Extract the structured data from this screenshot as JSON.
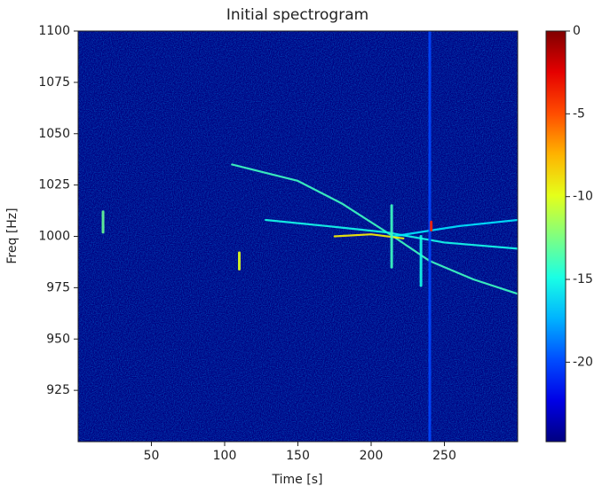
{
  "chart_data": {
    "type": "spectrogram",
    "title": "Initial spectrogram",
    "x_label": "Time [s]",
    "y_label": "Freq [Hz]",
    "xlim": [
      0,
      300
    ],
    "ylim": [
      900,
      1100
    ],
    "xticks": [
      50,
      100,
      150,
      200,
      250
    ],
    "yticks": [
      925,
      950,
      975,
      1000,
      1025,
      1050,
      1075,
      1100
    ],
    "clim": [
      -24.8,
      0
    ],
    "cticks": [
      0,
      -5,
      -10,
      -15,
      -20
    ],
    "colormap": "jet",
    "tracks": [
      {
        "x": [
          105,
          150,
          180,
          215,
          240,
          270,
          300
        ],
        "y": [
          1035,
          1027,
          1016,
          1000,
          988,
          979,
          972
        ],
        "level": -14
      },
      {
        "x": [
          128,
          170,
          210,
          250,
          300
        ],
        "y": [
          1008,
          1005,
          1002,
          997,
          994
        ],
        "level": -15
      },
      {
        "x": [
          215,
          260,
          300
        ],
        "y": [
          1000,
          1005,
          1008
        ],
        "level": -16
      },
      {
        "x": [
          175,
          200,
          222
        ],
        "y": [
          1000,
          1001,
          999
        ],
        "level": -9
      },
      {
        "x": [
          240,
          240
        ],
        "y": [
          900,
          1100
        ],
        "level": -20
      },
      {
        "x": [
          214,
          214
        ],
        "y": [
          985,
          1015
        ],
        "level": -14
      },
      {
        "x": [
          234,
          234
        ],
        "y": [
          976,
          1000
        ],
        "level": -15
      },
      {
        "x": [
          17,
          17
        ],
        "y": [
          1002,
          1012
        ],
        "level": -13
      },
      {
        "x": [
          110,
          110
        ],
        "y": [
          984,
          992
        ],
        "level": -10
      },
      {
        "x": [
          241,
          241
        ],
        "y": [
          1003,
          1007
        ],
        "level": -4
      }
    ]
  }
}
